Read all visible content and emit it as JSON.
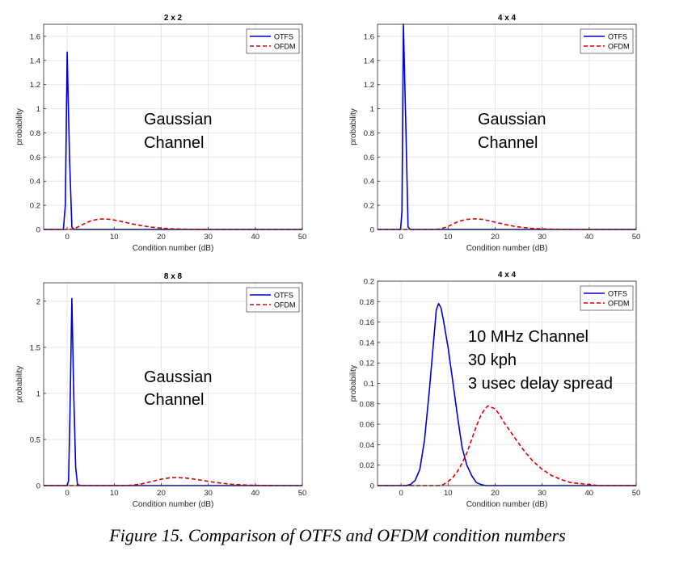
{
  "figure": {
    "caption": "Figure 15. Comparison of OTFS and OFDM condition numbers"
  },
  "chart_data": [
    {
      "type": "line",
      "title": "2 x 2",
      "xlabel": "Condition number (dB)",
      "ylabel": "probability",
      "xlim": [
        -5,
        50
      ],
      "ylim": [
        0,
        1.7
      ],
      "xticks": [
        0,
        10,
        20,
        30,
        40,
        50
      ],
      "yticks": [
        0,
        0.2,
        0.4,
        0.6,
        0.8,
        1,
        1.2,
        1.4,
        1.6
      ],
      "ytick_labels": [
        "0",
        "0.2",
        "0.4",
        "0.6",
        "0.8",
        "1",
        "1.2",
        "1.4",
        "1.6"
      ],
      "grid": true,
      "legend": "top-right",
      "annotation": [
        "Gaussian",
        "Channel"
      ],
      "series": [
        {
          "name": "OTFS",
          "color": "#0000cc",
          "style": "solid",
          "points": [
            [
              -5,
              0
            ],
            [
              -0.8,
              0
            ],
            [
              -0.4,
              0.2
            ],
            [
              0,
              1.47
            ],
            [
              0.5,
              0.6
            ],
            [
              1,
              0.02
            ],
            [
              1.5,
              0
            ],
            [
              50,
              0
            ]
          ]
        },
        {
          "name": "OFDM",
          "color": "#dd0000",
          "style": "dashed",
          "points": [
            [
              -5,
              0
            ],
            [
              0,
              0
            ],
            [
              1,
              0.003
            ],
            [
              2,
              0.015
            ],
            [
              3,
              0.035
            ],
            [
              4,
              0.055
            ],
            [
              5,
              0.07
            ],
            [
              6,
              0.08
            ],
            [
              7,
              0.086
            ],
            [
              8,
              0.087
            ],
            [
              9,
              0.084
            ],
            [
              10,
              0.078
            ],
            [
              12,
              0.062
            ],
            [
              14,
              0.045
            ],
            [
              16,
              0.03
            ],
            [
              18,
              0.019
            ],
            [
              20,
              0.011
            ],
            [
              22,
              0.006
            ],
            [
              25,
              0.002
            ],
            [
              30,
              0
            ],
            [
              50,
              0
            ]
          ]
        }
      ]
    },
    {
      "type": "line",
      "title": "4 x 4",
      "xlabel": "Condition number (dB)",
      "ylabel": "probability",
      "xlim": [
        -5,
        50
      ],
      "ylim": [
        0,
        1.7
      ],
      "xticks": [
        0,
        10,
        20,
        30,
        40,
        50
      ],
      "yticks": [
        0,
        0.2,
        0.4,
        0.6,
        0.8,
        1,
        1.2,
        1.4,
        1.6
      ],
      "ytick_labels": [
        "0",
        "0.2",
        "0.4",
        "0.6",
        "0.8",
        "1",
        "1.2",
        "1.4",
        "1.6"
      ],
      "grid": true,
      "legend": "top-right",
      "annotation": [
        "Gaussian",
        "Channel"
      ],
      "series": [
        {
          "name": "OTFS",
          "color": "#0000cc",
          "style": "solid",
          "points": [
            [
              -5,
              0
            ],
            [
              -0.1,
              0
            ],
            [
              0.2,
              0.15
            ],
            [
              0.5,
              1.7
            ],
            [
              1.0,
              0.9
            ],
            [
              1.5,
              0.02
            ],
            [
              2,
              0
            ],
            [
              50,
              0
            ]
          ]
        },
        {
          "name": "OFDM",
          "color": "#dd0000",
          "style": "dashed",
          "points": [
            [
              -5,
              0
            ],
            [
              7,
              0
            ],
            [
              8,
              0.003
            ],
            [
              9,
              0.012
            ],
            [
              10,
              0.025
            ],
            [
              11,
              0.045
            ],
            [
              12,
              0.062
            ],
            [
              13,
              0.075
            ],
            [
              14,
              0.083
            ],
            [
              15,
              0.087
            ],
            [
              16,
              0.088
            ],
            [
              17,
              0.085
            ],
            [
              18,
              0.078
            ],
            [
              20,
              0.06
            ],
            [
              22,
              0.042
            ],
            [
              24,
              0.027
            ],
            [
              26,
              0.016
            ],
            [
              28,
              0.009
            ],
            [
              30,
              0.005
            ],
            [
              33,
              0.002
            ],
            [
              37,
              0
            ],
            [
              50,
              0
            ]
          ]
        }
      ]
    },
    {
      "type": "line",
      "title": "8 x 8",
      "xlabel": "Condition number (dB)",
      "ylabel": "probability",
      "xlim": [
        -5,
        50
      ],
      "ylim": [
        0,
        2.2
      ],
      "xticks": [
        0,
        10,
        20,
        30,
        40,
        50
      ],
      "yticks": [
        0,
        0.5,
        1,
        1.5,
        2
      ],
      "ytick_labels": [
        "0",
        "0.5",
        "1",
        "1.5",
        "2"
      ],
      "grid": true,
      "legend": "top-right",
      "annotation": [
        "Gaussian",
        "Channel"
      ],
      "series": [
        {
          "name": "OTFS",
          "color": "#0000cc",
          "style": "solid",
          "points": [
            [
              -5,
              0
            ],
            [
              0,
              0
            ],
            [
              0.3,
              0.05
            ],
            [
              0.6,
              0.8
            ],
            [
              1.0,
              2.03
            ],
            [
              1.4,
              1.0
            ],
            [
              1.8,
              0.2
            ],
            [
              2.2,
              0.01
            ],
            [
              3,
              0
            ],
            [
              50,
              0
            ]
          ]
        },
        {
          "name": "OFDM",
          "color": "#dd0000",
          "style": "dashed",
          "points": [
            [
              -5,
              0
            ],
            [
              12,
              0
            ],
            [
              14,
              0.005
            ],
            [
              16,
              0.02
            ],
            [
              18,
              0.045
            ],
            [
              20,
              0.07
            ],
            [
              22,
              0.085
            ],
            [
              23,
              0.088
            ],
            [
              25,
              0.083
            ],
            [
              27,
              0.07
            ],
            [
              29,
              0.054
            ],
            [
              31,
              0.038
            ],
            [
              33,
              0.025
            ],
            [
              35,
              0.015
            ],
            [
              38,
              0.006
            ],
            [
              42,
              0.001
            ],
            [
              45,
              0
            ],
            [
              50,
              0
            ]
          ]
        }
      ]
    },
    {
      "type": "line",
      "title": "4 x 4",
      "xlabel": "Condition number (dB)",
      "ylabel": "probability",
      "xlim": [
        -5,
        50
      ],
      "ylim": [
        0,
        0.2
      ],
      "xticks": [
        0,
        10,
        20,
        30,
        40,
        50
      ],
      "yticks": [
        0,
        0.02,
        0.04,
        0.06,
        0.08,
        0.1,
        0.12,
        0.14,
        0.16,
        0.18,
        0.2
      ],
      "ytick_labels": [
        "0",
        "0.02",
        "0.04",
        "0.06",
        "0.08",
        "0.1",
        "0.12",
        "0.14",
        "0.16",
        "0.18",
        "0.2"
      ],
      "grid": true,
      "legend": "top-right",
      "annotation": [
        "10 MHz Channel",
        "30 kph",
        "3 usec delay spread"
      ],
      "series": [
        {
          "name": "OTFS",
          "color": "#0000cc",
          "style": "solid",
          "points": [
            [
              -5,
              0
            ],
            [
              1,
              0
            ],
            [
              2,
              0.001
            ],
            [
              3,
              0.005
            ],
            [
              4,
              0.016
            ],
            [
              5,
              0.045
            ],
            [
              6,
              0.092
            ],
            [
              7,
              0.145
            ],
            [
              7.5,
              0.172
            ],
            [
              8,
              0.178
            ],
            [
              8.5,
              0.174
            ],
            [
              9,
              0.162
            ],
            [
              10,
              0.135
            ],
            [
              11,
              0.102
            ],
            [
              12,
              0.068
            ],
            [
              13,
              0.037
            ],
            [
              14,
              0.02
            ],
            [
              15,
              0.01
            ],
            [
              16,
              0.003
            ],
            [
              17,
              0.001
            ],
            [
              18,
              0
            ],
            [
              50,
              0
            ]
          ]
        },
        {
          "name": "OFDM",
          "color": "#dd0000",
          "style": "dashed",
          "points": [
            [
              -5,
              0
            ],
            [
              8,
              0
            ],
            [
              9,
              0.001
            ],
            [
              10,
              0.004
            ],
            [
              11,
              0.008
            ],
            [
              12,
              0.014
            ],
            [
              13,
              0.022
            ],
            [
              14,
              0.032
            ],
            [
              15,
              0.045
            ],
            [
              16,
              0.058
            ],
            [
              17,
              0.069
            ],
            [
              18,
              0.076
            ],
            [
              18.5,
              0.078
            ],
            [
              19,
              0.077
            ],
            [
              20,
              0.075
            ],
            [
              21,
              0.069
            ],
            [
              22,
              0.061
            ],
            [
              24,
              0.048
            ],
            [
              26,
              0.035
            ],
            [
              28,
              0.024
            ],
            [
              30,
              0.016
            ],
            [
              32,
              0.01
            ],
            [
              34,
              0.006
            ],
            [
              36,
              0.003
            ],
            [
              38,
              0.002
            ],
            [
              40,
              0.001
            ],
            [
              42,
              0
            ],
            [
              50,
              0
            ]
          ]
        }
      ]
    }
  ]
}
